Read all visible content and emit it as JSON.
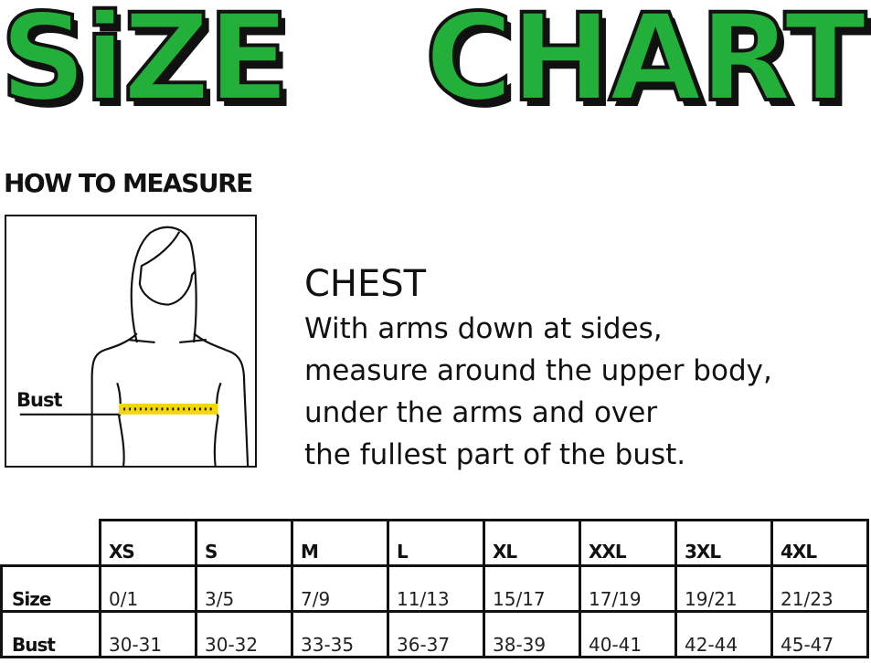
{
  "title": {
    "word1": "SiZE",
    "word2": "CHART",
    "fill_color": "#22b03a",
    "shadow_color": "#111111"
  },
  "how_to_measure": "HOW TO MEASURE",
  "figure": {
    "bust_label": "Bust",
    "tape_color": "#f2d800"
  },
  "chest": {
    "title": "CHEST",
    "lines": [
      "With arms down at sides,",
      "measure around the upper body,",
      "under the arms and over",
      "the fullest part of the bust."
    ]
  },
  "table": {
    "sizes": [
      "XS",
      "S",
      "M",
      "L",
      "XL",
      "XXL",
      "3XL",
      "4XL"
    ],
    "rows": [
      {
        "label": "Size",
        "values": [
          "0/1",
          "3/5",
          "7/9",
          "11/13",
          "15/17",
          "17/19",
          "19/21",
          "21/23"
        ]
      },
      {
        "label": "Bust",
        "values": [
          "30-31",
          "30-32",
          "33-35",
          "36-37",
          "38-39",
          "40-41",
          "42-44",
          "45-47"
        ]
      }
    ]
  }
}
